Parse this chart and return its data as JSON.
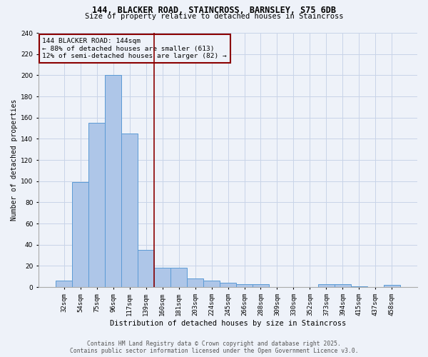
{
  "title1": "144, BLACKER ROAD, STAINCROSS, BARNSLEY, S75 6DB",
  "title2": "Size of property relative to detached houses in Staincross",
  "xlabel": "Distribution of detached houses by size in Staincross",
  "ylabel": "Number of detached properties",
  "bin_labels": [
    "32sqm",
    "54sqm",
    "75sqm",
    "96sqm",
    "117sqm",
    "139sqm",
    "160sqm",
    "181sqm",
    "203sqm",
    "224sqm",
    "245sqm",
    "266sqm",
    "288sqm",
    "309sqm",
    "330sqm",
    "352sqm",
    "373sqm",
    "394sqm",
    "415sqm",
    "437sqm",
    "458sqm"
  ],
  "bar_values": [
    6,
    99,
    155,
    200,
    145,
    35,
    18,
    18,
    8,
    6,
    4,
    3,
    3,
    0,
    0,
    0,
    3,
    3,
    1,
    0,
    2
  ],
  "bar_color": "#aec6e8",
  "bar_edge_color": "#5b9bd5",
  "vline_x": 5.5,
  "vline_color": "#8b0000",
  "annotation_line1": "144 BLACKER ROAD: 144sqm",
  "annotation_line2": "← 88% of detached houses are smaller (613)",
  "annotation_line3": "12% of semi-detached houses are larger (82) →",
  "annotation_box_color": "#8b0000",
  "ylim": [
    0,
    240
  ],
  "yticks": [
    0,
    20,
    40,
    60,
    80,
    100,
    120,
    140,
    160,
    180,
    200,
    220,
    240
  ],
  "footer1": "Contains HM Land Registry data © Crown copyright and database right 2025.",
  "footer2": "Contains public sector information licensed under the Open Government Licence v3.0.",
  "bg_color": "#eef2f9",
  "grid_color": "#c8d4e8",
  "title1_fontsize": 8.5,
  "title2_fontsize": 7.5,
  "xlabel_fontsize": 7.5,
  "ylabel_fontsize": 7.0,
  "tick_fontsize": 6.5,
  "annot_fontsize": 6.8,
  "footer_fontsize": 5.8
}
